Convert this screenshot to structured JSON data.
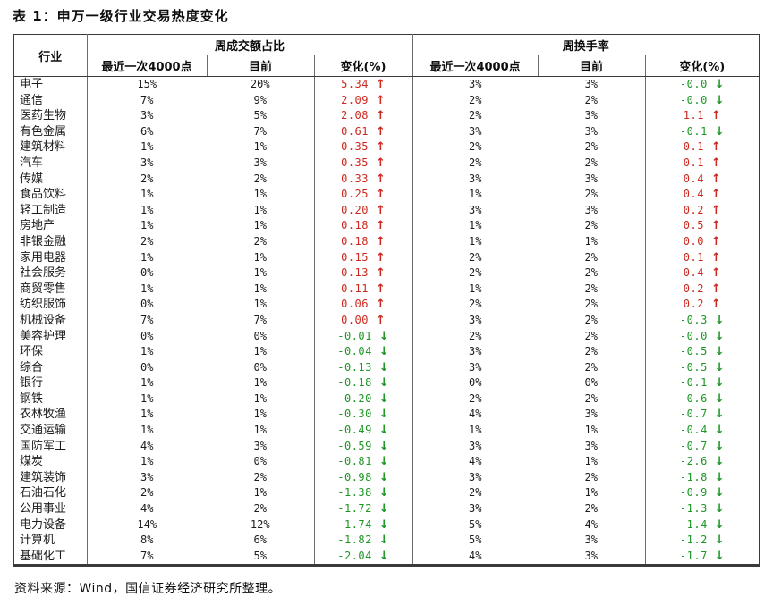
{
  "title": "表 1：申万一级行业交易热度变化",
  "source": "资料来源：Wind，国信证券经济研究所整理。",
  "colors": {
    "up_red": "#cc2a20",
    "down_green": "#1e9626"
  },
  "arrows": {
    "up": "↑",
    "down": "↓"
  },
  "table": {
    "industry_header": "行业",
    "groups": [
      {
        "label": "周成交额占比",
        "sub": [
          "最近一次4000点",
          "目前",
          "变化(%)"
        ]
      },
      {
        "label": "周换手率",
        "sub": [
          "最近一次4000点",
          "目前",
          "变化(%)"
        ]
      }
    ],
    "row_fields": [
      "industry",
      "amt_share_4000",
      "amt_share_now",
      "amt_share_change",
      "amt_share_trend",
      "turnover_4000",
      "turnover_now",
      "turnover_change",
      "turnover_trend"
    ],
    "rows": [
      [
        "电子",
        "15%",
        "20%",
        "5.34",
        "up",
        "3%",
        "3%",
        "-0.0",
        "down"
      ],
      [
        "通信",
        "7%",
        "9%",
        "2.09",
        "up",
        "2%",
        "2%",
        "-0.0",
        "down"
      ],
      [
        "医药生物",
        "3%",
        "5%",
        "2.08",
        "up",
        "2%",
        "3%",
        "1.1",
        "up"
      ],
      [
        "有色金属",
        "6%",
        "7%",
        "0.61",
        "up",
        "3%",
        "3%",
        "-0.1",
        "down"
      ],
      [
        "建筑材料",
        "1%",
        "1%",
        "0.35",
        "up",
        "2%",
        "2%",
        "0.1",
        "up"
      ],
      [
        "汽车",
        "3%",
        "3%",
        "0.35",
        "up",
        "2%",
        "2%",
        "0.1",
        "up"
      ],
      [
        "传媒",
        "2%",
        "2%",
        "0.33",
        "up",
        "3%",
        "3%",
        "0.4",
        "up"
      ],
      [
        "食品饮料",
        "1%",
        "1%",
        "0.25",
        "up",
        "1%",
        "2%",
        "0.4",
        "up"
      ],
      [
        "轻工制造",
        "1%",
        "1%",
        "0.20",
        "up",
        "3%",
        "3%",
        "0.2",
        "up"
      ],
      [
        "房地产",
        "1%",
        "1%",
        "0.18",
        "up",
        "1%",
        "2%",
        "0.5",
        "up"
      ],
      [
        "非银金融",
        "2%",
        "2%",
        "0.18",
        "up",
        "1%",
        "1%",
        "0.0",
        "up"
      ],
      [
        "家用电器",
        "1%",
        "1%",
        "0.15",
        "up",
        "2%",
        "2%",
        "0.1",
        "up"
      ],
      [
        "社会服务",
        "0%",
        "1%",
        "0.13",
        "up",
        "2%",
        "2%",
        "0.4",
        "up"
      ],
      [
        "商贸零售",
        "1%",
        "1%",
        "0.11",
        "up",
        "1%",
        "2%",
        "0.2",
        "up"
      ],
      [
        "纺织服饰",
        "0%",
        "1%",
        "0.06",
        "up",
        "2%",
        "2%",
        "0.2",
        "up"
      ],
      [
        "机械设备",
        "7%",
        "7%",
        "0.00",
        "up",
        "3%",
        "2%",
        "-0.3",
        "down"
      ],
      [
        "美容护理",
        "0%",
        "0%",
        "-0.01",
        "down",
        "2%",
        "2%",
        "-0.0",
        "down"
      ],
      [
        "环保",
        "1%",
        "1%",
        "-0.04",
        "down",
        "3%",
        "2%",
        "-0.5",
        "down"
      ],
      [
        "综合",
        "0%",
        "0%",
        "-0.13",
        "down",
        "3%",
        "2%",
        "-0.5",
        "down"
      ],
      [
        "银行",
        "1%",
        "1%",
        "-0.18",
        "down",
        "0%",
        "0%",
        "-0.1",
        "down"
      ],
      [
        "钢铁",
        "1%",
        "1%",
        "-0.20",
        "down",
        "2%",
        "2%",
        "-0.6",
        "down"
      ],
      [
        "农林牧渔",
        "1%",
        "1%",
        "-0.30",
        "down",
        "4%",
        "3%",
        "-0.7",
        "down"
      ],
      [
        "交通运输",
        "1%",
        "1%",
        "-0.49",
        "down",
        "1%",
        "1%",
        "-0.4",
        "down"
      ],
      [
        "国防军工",
        "4%",
        "3%",
        "-0.59",
        "down",
        "3%",
        "3%",
        "-0.7",
        "down"
      ],
      [
        "煤炭",
        "1%",
        "0%",
        "-0.81",
        "down",
        "4%",
        "1%",
        "-2.6",
        "down"
      ],
      [
        "建筑装饰",
        "3%",
        "2%",
        "-0.98",
        "down",
        "3%",
        "2%",
        "-1.8",
        "down"
      ],
      [
        "石油石化",
        "2%",
        "1%",
        "-1.38",
        "down",
        "2%",
        "1%",
        "-0.9",
        "down"
      ],
      [
        "公用事业",
        "4%",
        "2%",
        "-1.72",
        "down",
        "3%",
        "2%",
        "-1.3",
        "down"
      ],
      [
        "电力设备",
        "14%",
        "12%",
        "-1.74",
        "down",
        "5%",
        "4%",
        "-1.4",
        "down"
      ],
      [
        "计算机",
        "8%",
        "6%",
        "-1.82",
        "down",
        "5%",
        "3%",
        "-1.2",
        "down"
      ],
      [
        "基础化工",
        "7%",
        "5%",
        "-2.04",
        "down",
        "4%",
        "3%",
        "-1.7",
        "down"
      ]
    ]
  }
}
